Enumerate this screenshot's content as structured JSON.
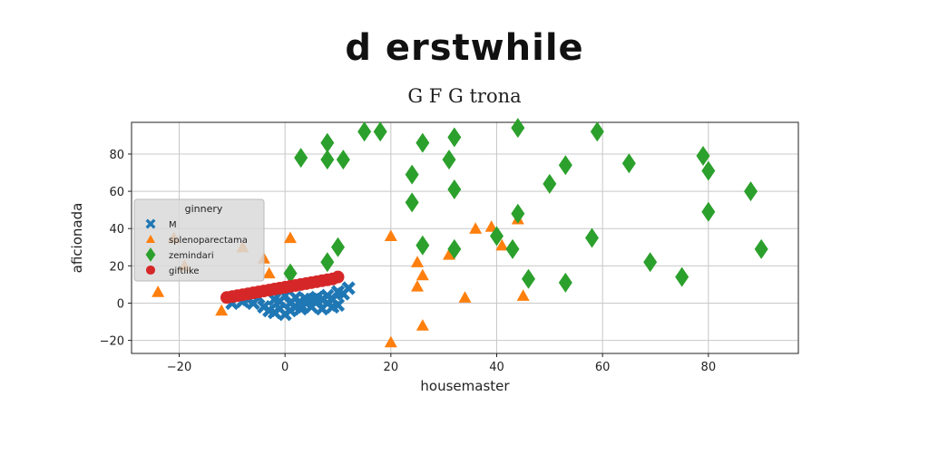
{
  "figure": {
    "title": "d erstwhile",
    "subtitle": "G F G trona"
  },
  "colors": {
    "M": "#1f77b4",
    "splenoparectama": "#ff7f0e",
    "zemindari": "#2ca02c",
    "giftlike": "#d62728",
    "grid": "#c8c8c8"
  },
  "chart_data": {
    "type": "scatter",
    "xlabel": "housemaster",
    "ylabel": "aficionada",
    "xlim": [
      -29,
      97
    ],
    "ylim": [
      -27,
      97
    ],
    "xticks": [
      -20,
      0,
      20,
      40,
      60,
      80
    ],
    "yticks": [
      -20,
      0,
      20,
      40,
      60,
      80
    ],
    "xtick_labels": [
      "−20",
      "0",
      "20",
      "40",
      "60",
      "80"
    ],
    "ytick_labels": [
      "−20",
      "0",
      "20",
      "40",
      "60",
      "80"
    ],
    "grid": true,
    "legend": {
      "title": "ginnery",
      "placement": "center-left"
    },
    "series": [
      {
        "name": "M",
        "marker": "x",
        "points": [
          [
            -10,
            0
          ],
          [
            -8,
            1
          ],
          [
            -6,
            0
          ],
          [
            -4,
            -2
          ],
          [
            -3,
            -4
          ],
          [
            -2,
            -5
          ],
          [
            -1,
            -3
          ],
          [
            0,
            -6
          ],
          [
            1,
            -4
          ],
          [
            2,
            -2
          ],
          [
            3,
            -3
          ],
          [
            4,
            0
          ],
          [
            5,
            -2
          ],
          [
            6,
            1
          ],
          [
            7,
            -3
          ],
          [
            8,
            0
          ],
          [
            9,
            2
          ],
          [
            10,
            -1
          ],
          [
            11,
            5
          ],
          [
            12,
            8
          ],
          [
            -5,
            3
          ],
          [
            -2,
            2
          ],
          [
            0,
            4
          ],
          [
            2,
            3
          ],
          [
            4,
            2
          ],
          [
            6,
            3
          ],
          [
            8,
            4
          ],
          [
            10,
            6
          ],
          [
            -7,
            2
          ],
          [
            3,
            -1
          ],
          [
            5,
            2
          ],
          [
            9,
            -2
          ],
          [
            1,
            0
          ],
          [
            -1,
            1
          ],
          [
            7,
            2
          ]
        ]
      },
      {
        "name": "splenoparectama",
        "marker": "triangle",
        "points": [
          [
            -24,
            6
          ],
          [
            -21,
            35
          ],
          [
            -19,
            20
          ],
          [
            -12,
            -4
          ],
          [
            -8,
            30
          ],
          [
            -4,
            24
          ],
          [
            -3,
            16
          ],
          [
            1,
            35
          ],
          [
            20,
            36
          ],
          [
            20,
            -21
          ],
          [
            25,
            9
          ],
          [
            25,
            22
          ],
          [
            26,
            15
          ],
          [
            26,
            -12
          ],
          [
            31,
            26
          ],
          [
            34,
            3
          ],
          [
            36,
            40
          ],
          [
            39,
            41
          ],
          [
            41,
            31
          ],
          [
            44,
            45
          ],
          [
            45,
            4
          ]
        ]
      },
      {
        "name": "zemindari",
        "marker": "diamond",
        "points": [
          [
            1,
            16
          ],
          [
            3,
            78
          ],
          [
            8,
            77
          ],
          [
            8,
            22
          ],
          [
            8,
            86
          ],
          [
            10,
            30
          ],
          [
            11,
            77
          ],
          [
            15,
            92
          ],
          [
            18,
            92
          ],
          [
            24,
            69
          ],
          [
            24,
            54
          ],
          [
            26,
            86
          ],
          [
            26,
            31
          ],
          [
            31,
            77
          ],
          [
            32,
            89
          ],
          [
            32,
            61
          ],
          [
            32,
            29
          ],
          [
            40,
            36
          ],
          [
            43,
            29
          ],
          [
            44,
            48
          ],
          [
            44,
            94
          ],
          [
            46,
            13
          ],
          [
            50,
            64
          ],
          [
            53,
            74
          ],
          [
            53,
            11
          ],
          [
            58,
            35
          ],
          [
            59,
            92
          ],
          [
            65,
            75
          ],
          [
            69,
            22
          ],
          [
            75,
            14
          ],
          [
            79,
            79
          ],
          [
            80,
            71
          ],
          [
            80,
            49
          ],
          [
            88,
            60
          ],
          [
            90,
            29
          ]
        ]
      },
      {
        "name": "giftlike",
        "marker": "circle",
        "points": [
          [
            -11,
            3
          ],
          [
            -10,
            3.5
          ],
          [
            -9,
            4
          ],
          [
            -8,
            4.5
          ],
          [
            -7,
            5
          ],
          [
            -6,
            5.5
          ],
          [
            -5,
            6
          ],
          [
            -4,
            6.5
          ],
          [
            -3,
            7
          ],
          [
            -2,
            7.5
          ],
          [
            -1,
            8
          ],
          [
            0,
            8.5
          ],
          [
            1,
            9
          ],
          [
            2,
            9.5
          ],
          [
            3,
            10
          ],
          [
            4,
            10.5
          ],
          [
            5,
            11
          ],
          [
            6,
            11.5
          ],
          [
            7,
            12
          ],
          [
            8,
            12.5
          ],
          [
            9,
            13
          ],
          [
            10,
            14
          ]
        ]
      }
    ]
  }
}
